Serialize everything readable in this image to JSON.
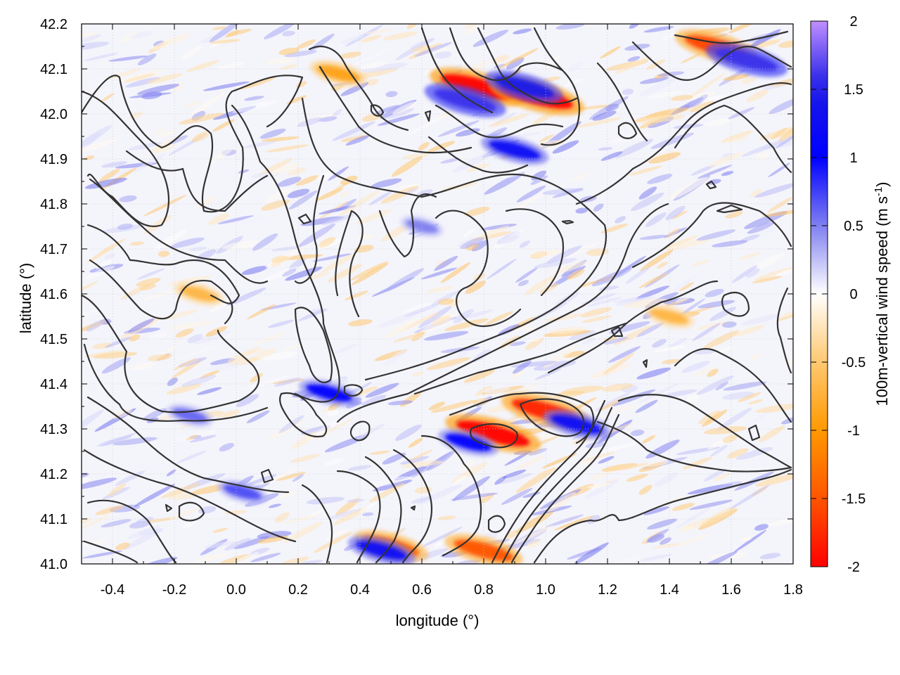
{
  "chart_data": {
    "type": "heatmap",
    "title": "",
    "xlabel": "longitude (°)",
    "ylabel": "latitude (°)",
    "xlim": [
      -0.5,
      1.8
    ],
    "ylim": [
      41.0,
      42.2
    ],
    "xticks": [
      "-0.4",
      "-0.2",
      "0.0",
      "0.2",
      "0.4",
      "0.6",
      "0.8",
      "1.0",
      "1.2",
      "1.4",
      "1.6",
      "1.8"
    ],
    "yticks": [
      "41.0",
      "41.1",
      "41.2",
      "41.3",
      "41.4",
      "41.5",
      "41.6",
      "41.7",
      "41.8",
      "41.9",
      "42.0",
      "42.1",
      "42.2"
    ],
    "grid": true,
    "colorbar": {
      "label_main": "100m-vertical wind speed (m s",
      "label_sup": "-1",
      "label_end": ")",
      "range": [
        -2,
        2
      ],
      "ticks": [
        "2",
        "1.5",
        "1",
        "0.5",
        "0",
        "-0.5",
        "-1",
        "-1.5",
        "-2"
      ],
      "colors": [
        {
          "value": 2.0,
          "color": "#bf8fff"
        },
        {
          "value": 1.5,
          "color": "#1a1ae6"
        },
        {
          "value": 1.0,
          "color": "#0000ff"
        },
        {
          "value": 0.5,
          "color": "#8080f0"
        },
        {
          "value": 0.0,
          "color": "#ffffff"
        },
        {
          "value": -0.5,
          "color": "#ffc870"
        },
        {
          "value": -1.0,
          "color": "#ff9900"
        },
        {
          "value": -1.5,
          "color": "#ff5500"
        },
        {
          "value": -2.0,
          "color": "#ff0000"
        }
      ]
    },
    "contour_color": "#333333",
    "features": {
      "negative_hotspots": [
        {
          "lon": 0.78,
          "lat": 42.06,
          "value": -2.0
        },
        {
          "lon": 0.97,
          "lat": 42.04,
          "value": -2.0
        },
        {
          "lon": 0.83,
          "lat": 41.29,
          "value": -2.0
        },
        {
          "lon": 1.0,
          "lat": 41.34,
          "value": -1.8
        },
        {
          "lon": 1.55,
          "lat": 42.15,
          "value": -1.6
        },
        {
          "lon": 0.5,
          "lat": 41.04,
          "value": -1.4
        },
        {
          "lon": 0.8,
          "lat": 41.03,
          "value": -1.5
        },
        {
          "lon": 0.33,
          "lat": 42.09,
          "value": -0.9
        },
        {
          "lon": -0.12,
          "lat": 41.6,
          "value": -0.7
        },
        {
          "lon": 1.4,
          "lat": 41.55,
          "value": -0.7
        }
      ],
      "positive_hotspots": [
        {
          "lon": 0.74,
          "lat": 42.03,
          "value": 1.6
        },
        {
          "lon": 0.93,
          "lat": 42.06,
          "value": 1.5
        },
        {
          "lon": 0.9,
          "lat": 41.92,
          "value": 1.2
        },
        {
          "lon": 1.65,
          "lat": 42.12,
          "value": 1.6
        },
        {
          "lon": 0.3,
          "lat": 41.38,
          "value": 1.0
        },
        {
          "lon": 0.47,
          "lat": 41.03,
          "value": 1.2
        },
        {
          "lon": 0.75,
          "lat": 41.27,
          "value": 1.0
        },
        {
          "lon": 1.1,
          "lat": 41.31,
          "value": 1.2
        },
        {
          "lon": -0.15,
          "lat": 41.33,
          "value": 0.6
        },
        {
          "lon": 0.02,
          "lat": 41.16,
          "value": 0.7
        },
        {
          "lon": 0.6,
          "lat": 41.75,
          "value": 0.5
        }
      ]
    }
  }
}
